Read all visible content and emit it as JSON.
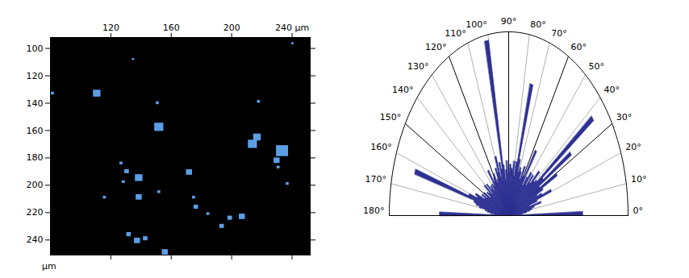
{
  "chart_data": [
    {
      "type": "image",
      "y_label": "µm",
      "xlim": [
        80,
        252
      ],
      "ylim": [
        92,
        251
      ],
      "xticks": [
        120,
        160,
        200,
        {
          "value": 240,
          "label": "240 µm"
        }
      ],
      "yticks": [
        100,
        120,
        140,
        160,
        180,
        200,
        220,
        240
      ],
      "color": "#5b9ee6",
      "blobs": {
        "x": [
          110.9,
          135,
          81.6,
          151,
          152,
          218,
          217,
          214,
          233.6,
          230,
          240.5,
          127,
          130.7,
          138.7,
          128.5,
          172,
          138.7,
          116,
          175,
          176.5,
          184.5,
          199,
          207,
          193.6,
          132,
          137.6,
          143,
          156,
          237,
          152,
          231
        ],
        "y": [
          133,
          108,
          133,
          140,
          157.6,
          139,
          165,
          170,
          175,
          182,
          96.5,
          184,
          190,
          194.7,
          197.6,
          190.6,
          208.8,
          209,
          209,
          216,
          221,
          224,
          223,
          230,
          236,
          240.6,
          239,
          249,
          199,
          205,
          187
        ],
        "size": [
          5,
          1.5,
          2,
          2,
          6,
          2,
          5,
          6,
          8,
          4,
          1.5,
          2,
          3,
          5,
          2,
          4,
          4,
          2,
          2,
          3,
          2,
          3,
          4,
          3,
          3,
          4,
          3,
          4,
          2,
          2,
          2
        ]
      }
    },
    {
      "type": "polar_bar",
      "grid": true,
      "color": "#2e3192",
      "rlim": [
        0,
        1
      ],
      "angle_ticks": [
        {
          "value": 0,
          "label": "0°"
        },
        {
          "value": 10,
          "label": "10°"
        },
        {
          "value": 20,
          "label": "20°"
        },
        {
          "value": 30,
          "label": "30°"
        },
        {
          "value": 40,
          "label": "40°"
        },
        {
          "value": 50,
          "label": "50°"
        },
        {
          "value": 60,
          "label": "60°"
        },
        {
          "value": 70,
          "label": "70°"
        },
        {
          "value": 80,
          "label": "80°"
        },
        {
          "value": 90,
          "label": "90°"
        },
        {
          "value": 100,
          "label": "100°"
        },
        {
          "value": 110,
          "label": "110°"
        },
        {
          "value": 120,
          "label": "120°"
        },
        {
          "value": 130,
          "label": "130°"
        },
        {
          "value": 140,
          "label": "140°"
        },
        {
          "value": 150,
          "label": "150°"
        },
        {
          "value": 160,
          "label": "160°"
        },
        {
          "value": 170,
          "label": "170°"
        },
        {
          "value": 180,
          "label": "180°"
        }
      ],
      "angles": [
        1,
        3,
        5,
        7,
        9,
        11,
        13,
        15,
        17,
        19,
        21,
        23,
        25,
        27,
        29,
        31,
        33,
        35,
        37,
        39,
        41,
        43,
        45,
        47,
        49,
        51,
        53,
        55,
        57,
        59,
        61,
        63,
        65,
        67,
        69,
        71,
        73,
        75,
        77,
        79,
        81,
        83,
        85,
        87,
        89,
        91,
        93,
        95,
        97,
        99,
        101,
        103,
        105,
        107,
        109,
        111,
        113,
        115,
        117,
        119,
        121,
        123,
        125,
        127,
        129,
        131,
        133,
        135,
        137,
        139,
        141,
        143,
        145,
        147,
        149,
        151,
        153,
        155,
        157,
        159,
        161,
        163,
        165,
        167,
        169,
        171,
        173,
        175,
        177,
        179
      ],
      "values": [
        0.62,
        0.1,
        0.12,
        0.15,
        0.18,
        0.2,
        0.22,
        0.28,
        0.18,
        0.25,
        0.38,
        0.3,
        0.26,
        0.32,
        0.46,
        0.3,
        0.62,
        0.35,
        0.88,
        0.3,
        0.28,
        0.35,
        0.25,
        0.3,
        0.22,
        0.3,
        0.26,
        0.2,
        0.42,
        0.25,
        0.24,
        0.3,
        0.22,
        0.26,
        0.28,
        0.25,
        0.32,
        0.74,
        0.3,
        0.22,
        0.3,
        0.25,
        0.26,
        0.28,
        0.24,
        0.22,
        0.3,
        0.25,
        0.2,
        0.28,
        0.97,
        0.26,
        0.3,
        0.22,
        0.34,
        0.25,
        0.28,
        0.22,
        0.2,
        0.26,
        0.24,
        0.22,
        0.3,
        0.2,
        0.22,
        0.18,
        0.22,
        0.2,
        0.25,
        0.18,
        0.26,
        0.2,
        0.22,
        0.18,
        0.24,
        0.2,
        0.25,
        0.22,
        0.3,
        0.28,
        0.35,
        0.82,
        0.3,
        0.28,
        0.25,
        0.2,
        0.18,
        0.15,
        0.12,
        0.58
      ]
    }
  ]
}
